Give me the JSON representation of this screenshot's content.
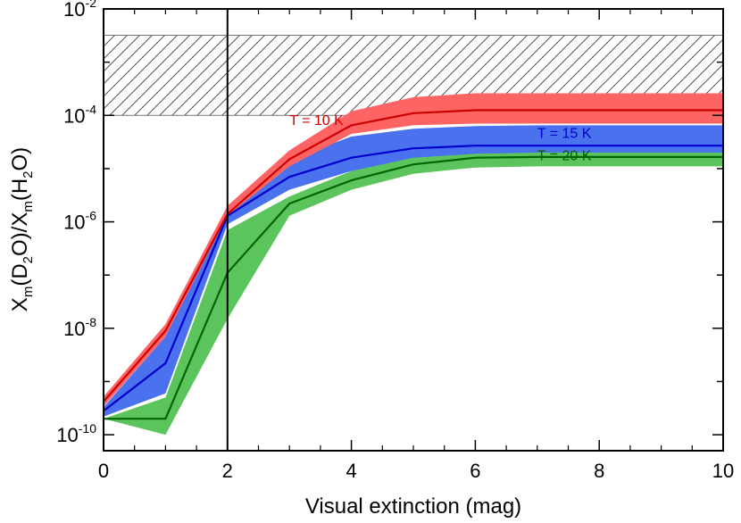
{
  "chart_data": {
    "type": "area",
    "title": "",
    "xlabel": "Visual extinction (mag)",
    "ylabel": {
      "x_main": "X",
      "x_sub": "m",
      "open1": "(D",
      "sub2a": "2",
      "close1": "O)/X",
      "x_sub2": "m",
      "open2": "(H",
      "sub2b": "2",
      "close2": "O)"
    },
    "x_scale": "linear",
    "y_scale": "log",
    "xlim": [
      0,
      10
    ],
    "ylim_log10": [
      -10.3,
      -2
    ],
    "x_ticks": [
      0,
      2,
      4,
      6,
      8,
      10
    ],
    "x_tick_labels": [
      "0",
      "2",
      "4",
      "6",
      "8",
      "10"
    ],
    "y_ticks": [
      {
        "exponent": -10,
        "base": "10",
        "sup": "-10"
      },
      {
        "exponent": -8,
        "base": "10",
        "sup": "-8"
      },
      {
        "exponent": -6,
        "base": "10",
        "sup": "-6"
      },
      {
        "exponent": -4,
        "base": "10",
        "sup": "-4"
      },
      {
        "exponent": -2,
        "base": "10",
        "sup": "-2"
      }
    ],
    "observed_range": {
      "y_low": 0.0001,
      "y_high": 0.0032,
      "style": "hatched"
    },
    "reference_line_x": 2,
    "series": [
      {
        "name": "T = 20 K",
        "color": "#006400",
        "band_color": "#5cc45c",
        "x": [
          0,
          1,
          2,
          3,
          4,
          5,
          6,
          7,
          8,
          9,
          10
        ],
        "values": [
          2e-10,
          2e-10,
          1.1e-07,
          2.2e-06,
          6e-06,
          1.2e-05,
          1.6e-05,
          1.65e-05,
          1.65e-05,
          1.65e-05,
          1.65e-05
        ],
        "lower": [
          2e-10,
          1e-10,
          1.5e-08,
          1.3e-06,
          4e-06,
          8e-06,
          1.05e-05,
          1.1e-05,
          1.1e-05,
          1.1e-05,
          1.1e-05
        ],
        "upper": [
          2e-10,
          5e-10,
          7e-07,
          3e-06,
          9e-06,
          1.8e-05,
          2.3e-05,
          2.4e-05,
          2.4e-05,
          2.4e-05,
          2.4e-05
        ]
      },
      {
        "name": "T = 15 K",
        "color": "#0000cd",
        "band_color": "#4a72ee",
        "x": [
          0,
          1,
          2,
          3,
          4,
          5,
          6,
          7,
          8,
          9,
          10
        ],
        "values": [
          2.8e-10,
          2.2e-09,
          1.3e-06,
          7e-06,
          1.6e-05,
          2.4e-05,
          2.7e-05,
          2.7e-05,
          2.7e-05,
          2.7e-05,
          2.7e-05
        ],
        "lower": [
          2.2e-10,
          6e-10,
          9e-07,
          4e-06,
          9e-06,
          1.6e-05,
          1.9e-05,
          2e-05,
          2e-05,
          2e-05,
          2e-05
        ],
        "upper": [
          3.3e-10,
          7e-09,
          1.7e-06,
          1.5e-05,
          4e-05,
          5.6e-05,
          6.3e-05,
          6.5e-05,
          6.5e-05,
          6.5e-05,
          6.5e-05
        ]
      },
      {
        "name": "T = 10 K",
        "color": "#cc0000",
        "band_color": "#ff6464",
        "x": [
          0,
          1,
          2,
          3,
          4,
          5,
          6,
          7,
          8,
          9,
          10
        ],
        "values": [
          4.2e-10,
          9e-09,
          1.4e-06,
          1.5e-05,
          6.5e-05,
          0.00011,
          0.000125,
          0.000125,
          0.000125,
          0.000125,
          0.000125
        ],
        "lower": [
          3.4e-10,
          7e-09,
          1.3e-06,
          1.1e-05,
          4.5e-05,
          6.5e-05,
          7e-05,
          7e-05,
          7e-05,
          7e-05,
          7e-05
        ],
        "upper": [
          5.2e-10,
          1.2e-08,
          2e-06,
          2.2e-05,
          0.00012,
          0.00022,
          0.00026,
          0.00026,
          0.00026,
          0.00026,
          0.00026
        ]
      }
    ],
    "annotations": [
      {
        "text": "T = 10 K",
        "x": 3.0,
        "y": 6.6e-05,
        "color": "#cc0000"
      },
      {
        "text": "T = 15 K",
        "x": 7.0,
        "y": 3.8e-05,
        "color": "#0000cd"
      },
      {
        "text": "T = 20 K",
        "x": 7.0,
        "y": 1.45e-05,
        "color": "#006400"
      }
    ]
  }
}
